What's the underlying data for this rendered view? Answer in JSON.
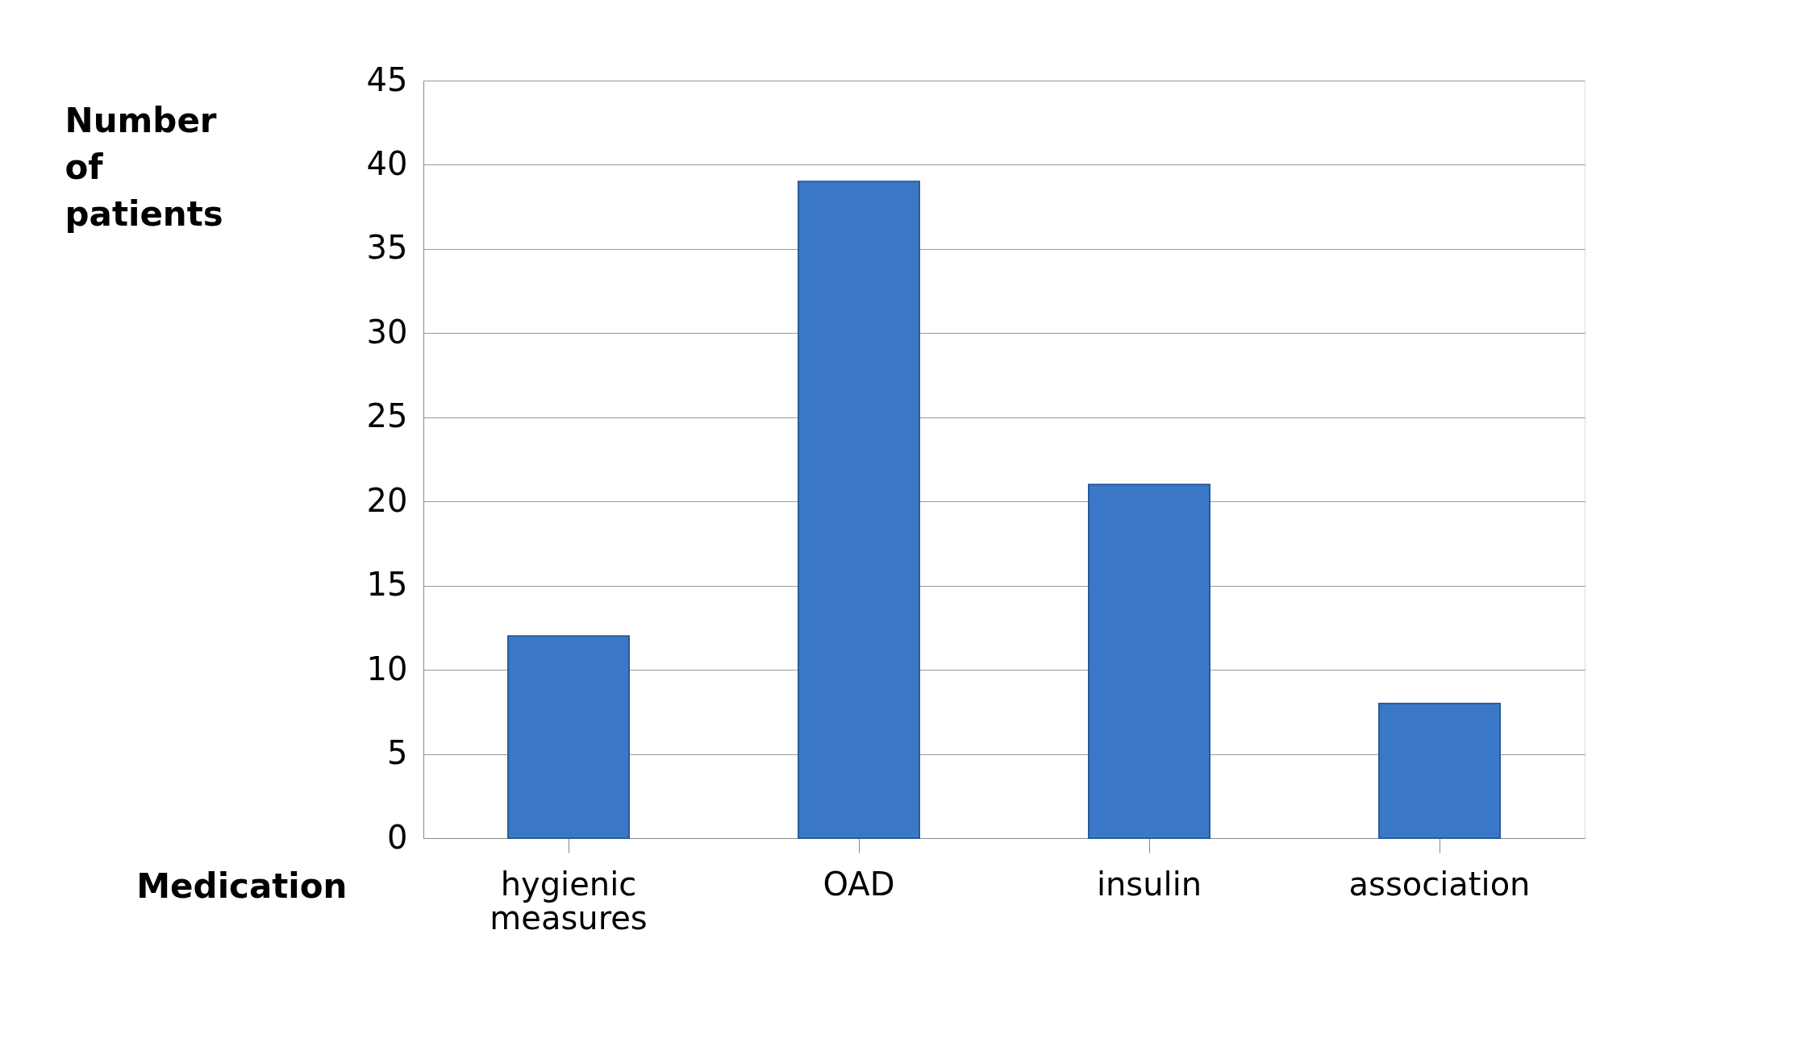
{
  "chart_data": {
    "type": "bar",
    "xlabel": "Medication",
    "ylabel": "Number of patients",
    "categories": [
      "hygienic measures",
      "OAD",
      "insulin",
      "association"
    ],
    "values": [
      12,
      39,
      21,
      8
    ],
    "color": "#3b78c8",
    "ylim": [
      0,
      45
    ],
    "yticks": [
      0,
      5,
      10,
      15,
      20,
      25,
      30,
      35,
      40,
      45
    ],
    "grid": "y"
  }
}
